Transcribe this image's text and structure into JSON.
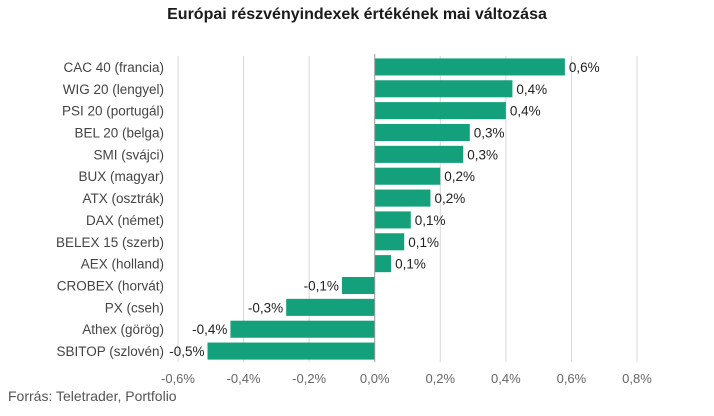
{
  "title": "Európai részvényindexek értékének mai változása",
  "source": "Forrás: Teletrader, Portfolio",
  "colors": {
    "bar": "#13a07a",
    "grid": "#d8d8d8",
    "zero": "#999999"
  },
  "chart_data": {
    "type": "bar",
    "orientation": "horizontal",
    "title": "Európai részvényindexek értékének mai változása",
    "categories": [
      "CAC 40 (francia)",
      "WIG 20 (lengyel)",
      "PSI 20 (portugál)",
      "BEL 20 (belga)",
      "SMI (svájci)",
      "BUX (magyar)",
      "ATX (osztrák)",
      "DAX (német)",
      "BELEX 15 (szerb)",
      "AEX (holland)",
      "CROBEX (horvát)",
      "PX (cseh)",
      "Athex (görög)",
      "SBITOP (szlovén)"
    ],
    "values": [
      0.58,
      0.42,
      0.4,
      0.29,
      0.27,
      0.2,
      0.17,
      0.11,
      0.09,
      0.05,
      -0.1,
      -0.27,
      -0.44,
      -0.51
    ],
    "labels": [
      "0,6%",
      "0,4%",
      "0,4%",
      "0,3%",
      "0,3%",
      "0,2%",
      "0,2%",
      "0,1%",
      "0,1%",
      "0,1%",
      "-0,1%",
      "-0,3%",
      "-0,4%",
      "-0,5%"
    ],
    "xlim": [
      -0.6,
      0.8
    ],
    "xticks": [
      -0.6,
      -0.4,
      -0.2,
      0.0,
      0.2,
      0.4,
      0.6,
      0.8
    ],
    "xtick_labels": [
      "-0,6%",
      "-0,4%",
      "-0,2%",
      "0,0%",
      "0,2%",
      "0,4%",
      "0,6%",
      "0,8%"
    ],
    "grid": true,
    "legend": false
  }
}
